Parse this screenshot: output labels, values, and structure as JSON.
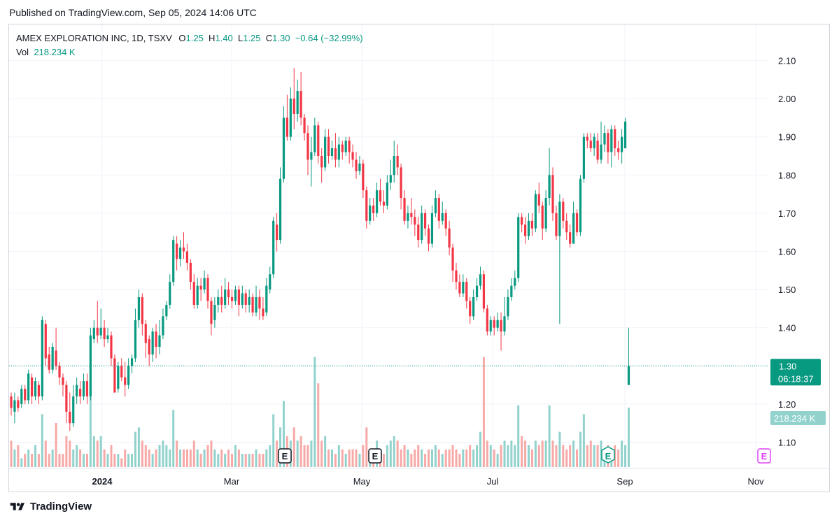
{
  "published": "Published on TradingView.com, Sep 05, 2024 14:06 UTC",
  "legend": {
    "symbol": "AMEX EXPLORATION INC, 1D, TSXV",
    "open_label": "O",
    "open": "1.25",
    "high_label": "H",
    "high": "1.40",
    "low_label": "L",
    "low": "1.25",
    "close_label": "C",
    "close": "1.30",
    "change": "−0.64 (−32.99%)",
    "vol_label": "Vol",
    "vol": "218.234 K"
  },
  "footer": {
    "brand": "TradingView",
    "logo": "tradingview-logo-icon"
  },
  "colors": {
    "up": "#089981",
    "down": "#f23645",
    "up_vol": "#92d2cc",
    "down_vol": "#f7a9a7",
    "grid": "#f0f3fa",
    "price_line": "#089981",
    "event_future": "#e040fb"
  },
  "chart_data": {
    "type": "candlestick",
    "ylim": [
      1.04,
      2.14
    ],
    "price_ticks": [
      "2.10",
      "2.00",
      "1.90",
      "1.80",
      "1.70",
      "1.60",
      "1.50",
      "1.40",
      "1.30",
      "1.20",
      "1.10"
    ],
    "time_labels": [
      "2024",
      "Mar",
      "May",
      "Jul",
      "Sep",
      "Nov"
    ],
    "last_price": "1.30",
    "countdown": "06:18:37",
    "volume_badge": "218.234 K",
    "events": [
      "E",
      "E",
      "E",
      "E"
    ],
    "candles": [
      [
        1.22,
        1.19,
        1.23,
        1.17
      ],
      [
        1.18,
        1.21,
        1.23,
        1.15
      ],
      [
        1.21,
        1.19,
        1.22,
        1.18
      ],
      [
        1.2,
        1.24,
        1.25,
        1.19
      ],
      [
        1.24,
        1.21,
        1.25,
        1.2
      ],
      [
        1.21,
        1.28,
        1.29,
        1.2
      ],
      [
        1.27,
        1.22,
        1.28,
        1.2
      ],
      [
        1.22,
        1.26,
        1.27,
        1.21
      ],
      [
        1.25,
        1.22,
        1.26,
        1.2
      ],
      [
        1.22,
        1.42,
        1.43,
        1.21
      ],
      [
        1.41,
        1.32,
        1.42,
        1.3
      ],
      [
        1.33,
        1.29,
        1.35,
        1.28
      ],
      [
        1.29,
        1.35,
        1.36,
        1.28
      ],
      [
        1.34,
        1.3,
        1.4,
        1.29
      ],
      [
        1.3,
        1.27,
        1.31,
        1.25
      ],
      [
        1.27,
        1.25,
        1.28,
        1.22
      ],
      [
        1.25,
        1.18,
        1.26,
        1.15
      ],
      [
        1.18,
        1.15,
        1.23,
        1.13
      ],
      [
        1.15,
        1.22,
        1.25,
        1.14
      ],
      [
        1.22,
        1.25,
        1.27,
        1.2
      ],
      [
        1.24,
        1.22,
        1.26,
        1.2
      ],
      [
        1.22,
        1.26,
        1.28,
        1.21
      ],
      [
        1.26,
        1.22,
        1.28,
        1.2
      ],
      [
        1.22,
        1.38,
        1.4,
        1.21
      ],
      [
        1.37,
        1.4,
        1.42,
        1.36
      ],
      [
        1.4,
        1.38,
        1.47,
        1.36
      ],
      [
        1.38,
        1.4,
        1.45,
        1.37
      ],
      [
        1.4,
        1.37,
        1.42,
        1.35
      ],
      [
        1.37,
        1.38,
        1.4,
        1.36
      ],
      [
        1.38,
        1.32,
        1.39,
        1.3
      ],
      [
        1.32,
        1.23,
        1.33,
        1.23
      ],
      [
        1.24,
        1.3,
        1.31,
        1.23
      ],
      [
        1.3,
        1.27,
        1.32,
        1.26
      ],
      [
        1.27,
        1.25,
        1.31,
        1.22
      ],
      [
        1.25,
        1.3,
        1.32,
        1.24
      ],
      [
        1.3,
        1.32,
        1.33,
        1.28
      ],
      [
        1.32,
        1.42,
        1.45,
        1.31
      ],
      [
        1.42,
        1.48,
        1.5,
        1.4
      ],
      [
        1.48,
        1.41,
        1.49,
        1.38
      ],
      [
        1.41,
        1.36,
        1.42,
        1.32
      ],
      [
        1.37,
        1.33,
        1.38,
        1.3
      ],
      [
        1.33,
        1.39,
        1.4,
        1.31
      ],
      [
        1.39,
        1.35,
        1.41,
        1.32
      ],
      [
        1.35,
        1.38,
        1.42,
        1.33
      ],
      [
        1.38,
        1.43,
        1.45,
        1.37
      ],
      [
        1.43,
        1.46,
        1.47,
        1.42
      ],
      [
        1.46,
        1.52,
        1.54,
        1.45
      ],
      [
        1.52,
        1.63,
        1.64,
        1.51
      ],
      [
        1.62,
        1.58,
        1.64,
        1.55
      ],
      [
        1.58,
        1.61,
        1.63,
        1.56
      ],
      [
        1.61,
        1.6,
        1.65,
        1.58
      ],
      [
        1.6,
        1.57,
        1.62,
        1.55
      ],
      [
        1.57,
        1.52,
        1.58,
        1.5
      ],
      [
        1.52,
        1.46,
        1.54,
        1.45
      ],
      [
        1.46,
        1.51,
        1.53,
        1.45
      ],
      [
        1.51,
        1.5,
        1.53,
        1.47
      ],
      [
        1.5,
        1.53,
        1.55,
        1.49
      ],
      [
        1.53,
        1.47,
        1.54,
        1.45
      ],
      [
        1.47,
        1.41,
        1.48,
        1.38
      ],
      [
        1.42,
        1.46,
        1.48,
        1.4
      ],
      [
        1.46,
        1.48,
        1.5,
        1.44
      ],
      [
        1.48,
        1.46,
        1.51,
        1.44
      ],
      [
        1.46,
        1.5,
        1.53,
        1.45
      ],
      [
        1.5,
        1.48,
        1.52,
        1.46
      ],
      [
        1.48,
        1.47,
        1.5,
        1.45
      ],
      [
        1.47,
        1.5,
        1.51,
        1.46
      ],
      [
        1.5,
        1.46,
        1.51,
        1.43
      ],
      [
        1.46,
        1.49,
        1.51,
        1.45
      ],
      [
        1.49,
        1.46,
        1.5,
        1.44
      ],
      [
        1.46,
        1.48,
        1.5,
        1.44
      ],
      [
        1.48,
        1.44,
        1.49,
        1.43
      ],
      [
        1.44,
        1.48,
        1.51,
        1.43
      ],
      [
        1.48,
        1.45,
        1.5,
        1.42
      ],
      [
        1.45,
        1.43,
        1.48,
        1.42
      ],
      [
        1.44,
        1.51,
        1.53,
        1.43
      ],
      [
        1.5,
        1.54,
        1.56,
        1.49
      ],
      [
        1.54,
        1.68,
        1.69,
        1.53
      ],
      [
        1.67,
        1.63,
        1.7,
        1.6
      ],
      [
        1.63,
        1.79,
        1.82,
        1.62
      ],
      [
        1.79,
        1.95,
        1.98,
        1.78
      ],
      [
        1.95,
        1.9,
        2.01,
        1.89
      ],
      [
        1.9,
        2.0,
        2.03,
        1.89
      ],
      [
        2.0,
        1.96,
        2.08,
        1.92
      ],
      [
        1.96,
        2.02,
        2.05,
        1.94
      ],
      [
        2.02,
        1.95,
        2.07,
        1.93
      ],
      [
        1.95,
        1.91,
        1.96,
        1.89
      ],
      [
        1.91,
        1.84,
        1.93,
        1.8
      ],
      [
        1.84,
        1.86,
        1.9,
        1.77
      ],
      [
        1.86,
        1.93,
        1.95,
        1.85
      ],
      [
        1.93,
        1.85,
        1.94,
        1.83
      ],
      [
        1.85,
        1.82,
        1.87,
        1.78
      ],
      [
        1.82,
        1.9,
        1.92,
        1.81
      ],
      [
        1.9,
        1.85,
        1.92,
        1.83
      ],
      [
        1.85,
        1.87,
        1.89,
        1.84
      ],
      [
        1.87,
        1.84,
        1.91,
        1.82
      ],
      [
        1.84,
        1.88,
        1.9,
        1.82
      ],
      [
        1.88,
        1.86,
        1.89,
        1.84
      ],
      [
        1.86,
        1.89,
        1.9,
        1.85
      ],
      [
        1.89,
        1.86,
        1.9,
        1.83
      ],
      [
        1.86,
        1.84,
        1.88,
        1.82
      ],
      [
        1.84,
        1.81,
        1.86,
        1.79
      ],
      [
        1.81,
        1.83,
        1.85,
        1.8
      ],
      [
        1.83,
        1.76,
        1.84,
        1.74
      ],
      [
        1.76,
        1.68,
        1.77,
        1.66
      ],
      [
        1.68,
        1.72,
        1.74,
        1.67
      ],
      [
        1.72,
        1.7,
        1.74,
        1.68
      ],
      [
        1.7,
        1.76,
        1.78,
        1.69
      ],
      [
        1.76,
        1.73,
        1.79,
        1.72
      ],
      [
        1.73,
        1.72,
        1.76,
        1.7
      ],
      [
        1.72,
        1.78,
        1.8,
        1.71
      ],
      [
        1.78,
        1.8,
        1.84,
        1.76
      ],
      [
        1.8,
        1.85,
        1.89,
        1.78
      ],
      [
        1.85,
        1.82,
        1.88,
        1.8
      ],
      [
        1.82,
        1.74,
        1.83,
        1.71
      ],
      [
        1.74,
        1.68,
        1.76,
        1.67
      ],
      [
        1.68,
        1.7,
        1.72,
        1.66
      ],
      [
        1.7,
        1.69,
        1.74,
        1.67
      ],
      [
        1.69,
        1.67,
        1.71,
        1.64
      ],
      [
        1.67,
        1.63,
        1.69,
        1.61
      ],
      [
        1.63,
        1.7,
        1.72,
        1.62
      ],
      [
        1.7,
        1.66,
        1.71,
        1.64
      ],
      [
        1.66,
        1.62,
        1.67,
        1.6
      ],
      [
        1.62,
        1.7,
        1.72,
        1.61
      ],
      [
        1.7,
        1.74,
        1.76,
        1.69
      ],
      [
        1.74,
        1.68,
        1.75,
        1.66
      ],
      [
        1.68,
        1.7,
        1.73,
        1.67
      ],
      [
        1.7,
        1.66,
        1.71,
        1.64
      ],
      [
        1.66,
        1.61,
        1.68,
        1.59
      ],
      [
        1.61,
        1.55,
        1.62,
        1.52
      ],
      [
        1.55,
        1.52,
        1.57,
        1.5
      ],
      [
        1.52,
        1.49,
        1.54,
        1.48
      ],
      [
        1.49,
        1.52,
        1.54,
        1.48
      ],
      [
        1.52,
        1.47,
        1.53,
        1.45
      ],
      [
        1.47,
        1.43,
        1.48,
        1.41
      ],
      [
        1.43,
        1.48,
        1.5,
        1.42
      ],
      [
        1.48,
        1.51,
        1.53,
        1.47
      ],
      [
        1.51,
        1.54,
        1.56,
        1.5
      ],
      [
        1.54,
        1.45,
        1.55,
        1.44
      ],
      [
        1.45,
        1.39,
        1.46,
        1.38
      ],
      [
        1.39,
        1.42,
        1.43,
        1.38
      ],
      [
        1.42,
        1.4,
        1.43,
        1.38
      ],
      [
        1.4,
        1.42,
        1.44,
        1.39
      ],
      [
        1.42,
        1.39,
        1.44,
        1.34
      ],
      [
        1.39,
        1.43,
        1.48,
        1.38
      ],
      [
        1.43,
        1.48,
        1.5,
        1.42
      ],
      [
        1.48,
        1.51,
        1.53,
        1.47
      ],
      [
        1.51,
        1.53,
        1.55,
        1.5
      ],
      [
        1.53,
        1.69,
        1.7,
        1.52
      ],
      [
        1.69,
        1.67,
        1.7,
        1.65
      ],
      [
        1.67,
        1.64,
        1.69,
        1.62
      ],
      [
        1.64,
        1.68,
        1.7,
        1.63
      ],
      [
        1.68,
        1.66,
        1.7,
        1.64
      ],
      [
        1.66,
        1.75,
        1.76,
        1.65
      ],
      [
        1.75,
        1.72,
        1.78,
        1.7
      ],
      [
        1.72,
        1.66,
        1.73,
        1.63
      ],
      [
        1.66,
        1.74,
        1.76,
        1.65
      ],
      [
        1.74,
        1.8,
        1.87,
        1.72
      ],
      [
        1.8,
        1.7,
        1.82,
        1.68
      ],
      [
        1.7,
        1.64,
        1.72,
        1.63
      ],
      [
        1.64,
        1.73,
        1.75,
        1.41
      ],
      [
        1.73,
        1.68,
        1.74,
        1.66
      ],
      [
        1.68,
        1.65,
        1.7,
        1.63
      ],
      [
        1.65,
        1.62,
        1.67,
        1.61
      ],
      [
        1.62,
        1.7,
        1.73,
        1.62
      ],
      [
        1.7,
        1.65,
        1.71,
        1.64
      ],
      [
        1.65,
        1.79,
        1.8,
        1.64
      ],
      [
        1.79,
        1.9,
        1.91,
        1.78
      ],
      [
        1.9,
        1.89,
        1.91,
        1.87
      ],
      [
        1.89,
        1.87,
        1.91,
        1.86
      ],
      [
        1.87,
        1.9,
        1.91,
        1.85
      ],
      [
        1.89,
        1.84,
        1.91,
        1.83
      ],
      [
        1.84,
        1.88,
        1.94,
        1.83
      ],
      [
        1.88,
        1.91,
        1.93,
        1.86
      ],
      [
        1.91,
        1.86,
        1.92,
        1.83
      ],
      [
        1.86,
        1.92,
        1.93,
        1.82
      ],
      [
        1.92,
        1.87,
        1.93,
        1.85
      ],
      [
        1.87,
        1.86,
        1.89,
        1.84
      ],
      [
        1.86,
        1.9,
        1.92,
        1.83
      ],
      [
        1.87,
        1.94,
        1.95,
        1.87
      ],
      [
        1.25,
        1.3,
        1.4,
        1.25
      ]
    ],
    "volumes": [
      0.06,
      0.04,
      0.05,
      0.02,
      0.03,
      0.04,
      0.03,
      0.05,
      0.03,
      0.12,
      0.06,
      0.03,
      0.04,
      0.1,
      0.03,
      0.03,
      0.07,
      0.06,
      0.04,
      0.05,
      0.04,
      0.03,
      0.03,
      0.23,
      0.07,
      0.06,
      0.07,
      0.04,
      0.03,
      0.05,
      0.03,
      0.03,
      0.02,
      0.04,
      0.03,
      0.03,
      0.08,
      0.09,
      0.06,
      0.05,
      0.04,
      0.03,
      0.04,
      0.05,
      0.06,
      0.05,
      0.04,
      0.13,
      0.06,
      0.04,
      0.04,
      0.04,
      0.04,
      0.06,
      0.04,
      0.03,
      0.04,
      0.05,
      0.06,
      0.04,
      0.03,
      0.04,
      0.03,
      0.04,
      0.03,
      0.05,
      0.04,
      0.03,
      0.03,
      0.03,
      0.03,
      0.04,
      0.03,
      0.03,
      0.04,
      0.05,
      0.12,
      0.06,
      0.09,
      0.15,
      0.07,
      0.06,
      0.09,
      0.06,
      0.07,
      0.05,
      0.05,
      0.06,
      0.25,
      0.19,
      0.06,
      0.07,
      0.04,
      0.04,
      0.03,
      0.05,
      0.04,
      0.03,
      0.04,
      0.04,
      0.04,
      0.03,
      0.05,
      0.09,
      0.04,
      0.04,
      0.06,
      0.04,
      0.03,
      0.05,
      0.06,
      0.07,
      0.06,
      0.04,
      0.05,
      0.04,
      0.03,
      0.04,
      0.05,
      0.04,
      0.03,
      0.04,
      0.04,
      0.05,
      0.04,
      0.03,
      0.04,
      0.04,
      0.05,
      0.04,
      0.03,
      0.04,
      0.04,
      0.05,
      0.04,
      0.05,
      0.08,
      0.25,
      0.06,
      0.05,
      0.04,
      0.03,
      0.05,
      0.06,
      0.05,
      0.06,
      0.05,
      0.14,
      0.07,
      0.06,
      0.05,
      0.04,
      0.06,
      0.05,
      0.06,
      0.06,
      0.14,
      0.06,
      0.05,
      0.08,
      0.05,
      0.04,
      0.05,
      0.06,
      0.04,
      0.08,
      0.12,
      0.05,
      0.06,
      0.05,
      0.05,
      0.06,
      0.04,
      0.05,
      0.04,
      0.05,
      0.04,
      0.06,
      0.05,
      0.135
    ]
  }
}
